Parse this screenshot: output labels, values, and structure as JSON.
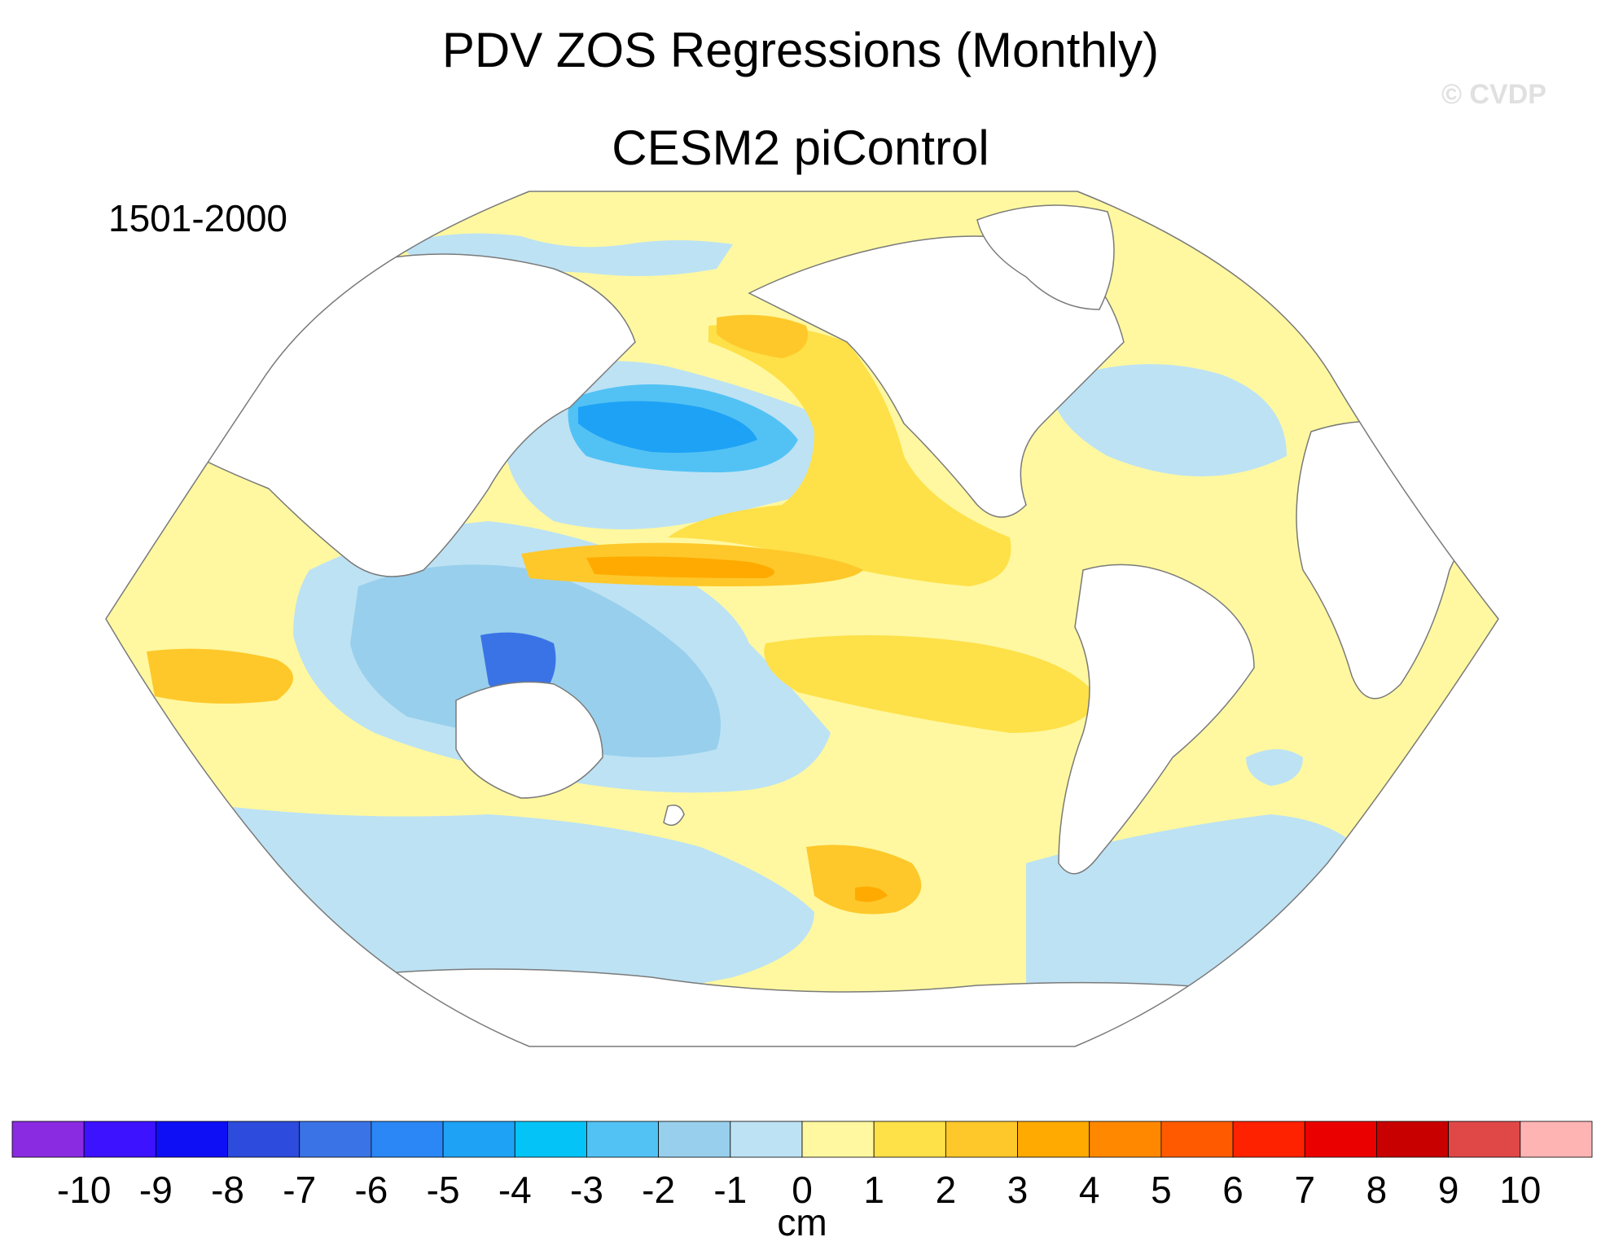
{
  "title": "PDV ZOS Regressions (Monthly)",
  "subtitle": "CESM2 piControl",
  "period": "1501-2000",
  "watermark": "© CVDP",
  "colorbar": {
    "unit": "cm",
    "ticks": [
      "-10",
      "-9",
      "-8",
      "-7",
      "-6",
      "-5",
      "-4",
      "-3",
      "-2",
      "-1",
      "0",
      "1",
      "2",
      "3",
      "4",
      "5",
      "6",
      "7",
      "8",
      "9",
      "10"
    ],
    "colors": [
      "#8a2be2",
      "#3d12ff",
      "#0f0ff5",
      "#2d4bdc",
      "#3a73e6",
      "#2a87f5",
      "#1ea2f5",
      "#04c3f6",
      "#52c2f4",
      "#98cfec",
      "#bde2f4",
      "#fff8a0",
      "#fee048",
      "#fec82a",
      "#ffaa00",
      "#ff8800",
      "#ff5a00",
      "#ff2200",
      "#eb0000",
      "#c80000",
      "#e04848",
      "#ffb4b4"
    ]
  },
  "map": {
    "ocean_color": "#fff8a0",
    "land_color": "#ffffff",
    "coast_color": "#7a7a7a"
  }
}
